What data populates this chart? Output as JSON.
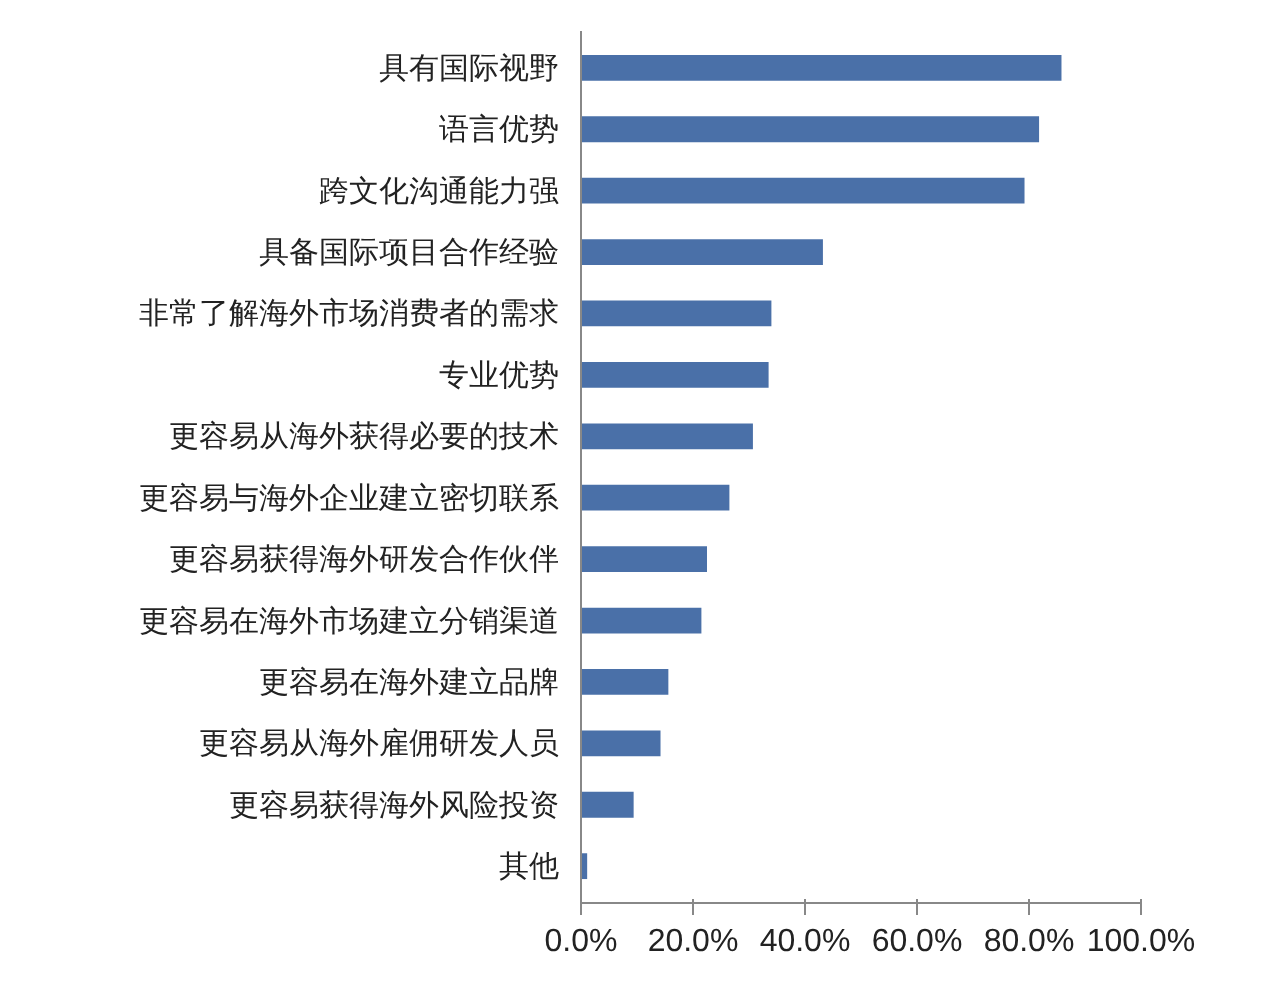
{
  "chart_data": {
    "type": "bar",
    "orientation": "horizontal",
    "color": "#4a70a8",
    "categories": [
      "具有国际视野",
      "语言优势",
      "跨文化沟通能力强",
      "具备国际项目合作经验",
      "非常了解海外市场消费者的需求",
      "专业优势",
      "更容易从海外获得必要的技术",
      "更容易与海外企业建立密切联系",
      "更容易获得海外研发合作伙伴",
      "更容易在海外市场建立分销渠道",
      "更容易在海外建立品牌",
      "更容易从海外雇佣研发人员",
      "更容易获得海外风险投资",
      "其他"
    ],
    "values": [
      85.8,
      81.8,
      79.2,
      43.2,
      34.0,
      33.5,
      30.7,
      26.5,
      22.5,
      21.5,
      15.6,
      14.2,
      9.4,
      1.1
    ],
    "xlim": [
      0,
      100
    ],
    "xticks": [
      {
        "value": 0,
        "label": "0.0%"
      },
      {
        "value": 20,
        "label": "20.0%"
      },
      {
        "value": 40,
        "label": "40.0%"
      },
      {
        "value": 60,
        "label": "60.0%"
      },
      {
        "value": 80,
        "label": "80.0%"
      },
      {
        "value": 100,
        "label": "100.0%"
      }
    ],
    "grid": false
  }
}
